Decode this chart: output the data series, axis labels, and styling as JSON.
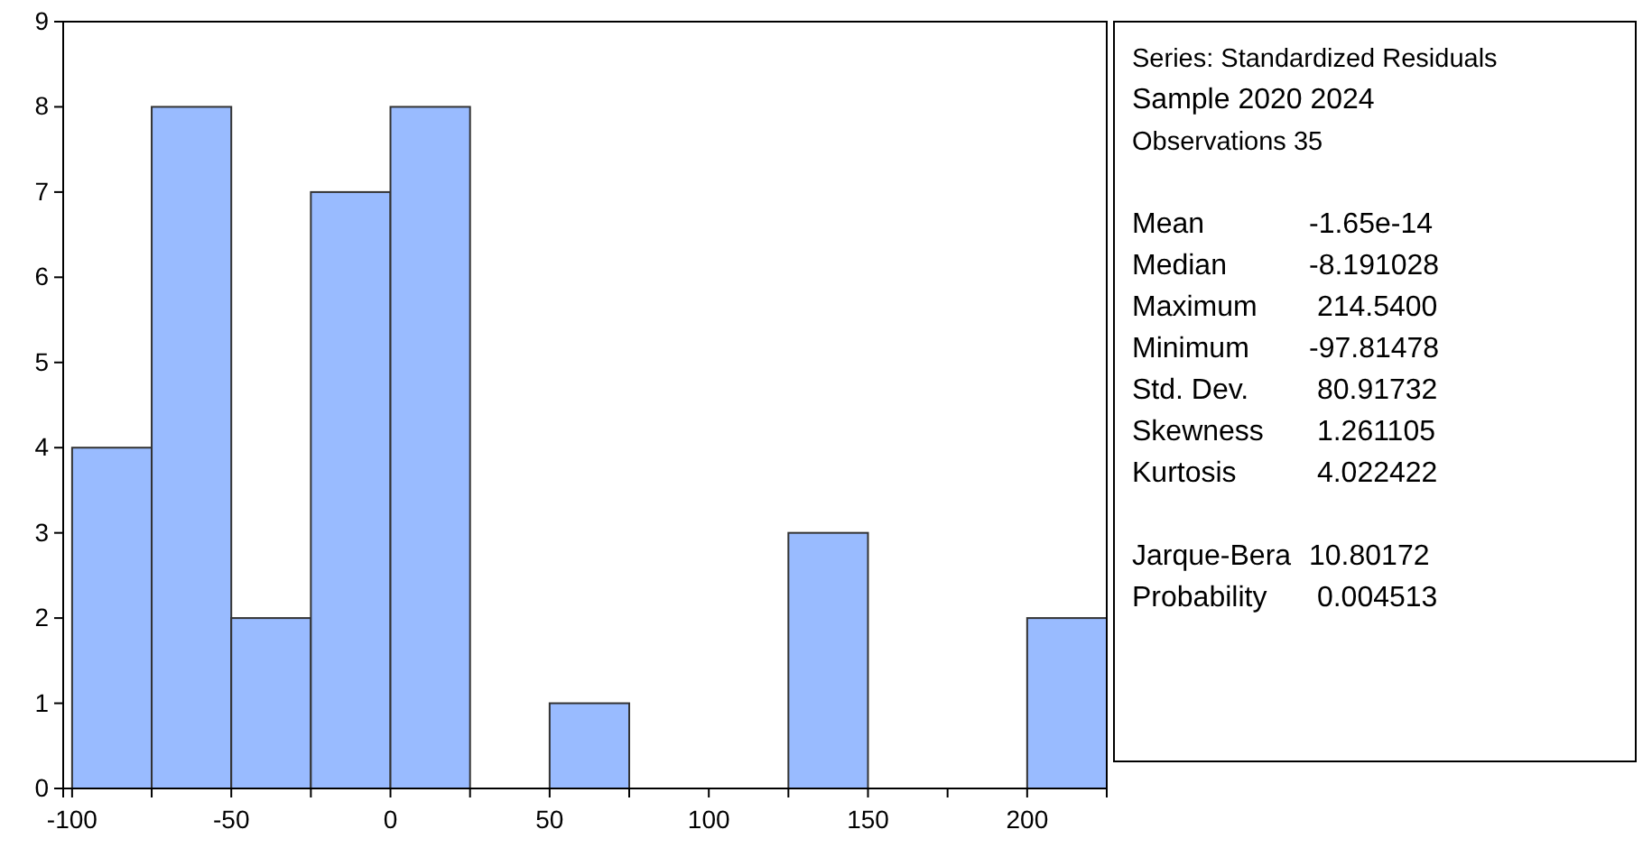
{
  "chart_data": [
    {
      "type": "histogram",
      "bins": [
        -100,
        -75,
        -50,
        -25,
        0,
        25,
        50,
        75,
        100,
        125,
        150,
        175,
        200,
        225
      ],
      "values": [
        4,
        8,
        2,
        7,
        8,
        0,
        1,
        0,
        0,
        3,
        0,
        0,
        2
      ],
      "color": "#99bbff",
      "xlim": [
        -102.8,
        225
      ],
      "ylim": [
        0,
        9
      ],
      "xticks": [
        -100,
        {
          "value": -75,
          "label": null
        },
        -50,
        {
          "value": -25,
          "label": null
        },
        0,
        {
          "value": 25,
          "label": null
        },
        50,
        {
          "value": 75,
          "label": null
        },
        100,
        {
          "value": 125,
          "label": null
        },
        150,
        {
          "value": 175,
          "label": null
        },
        200,
        {
          "value": 225,
          "label": null
        }
      ],
      "yticks": [
        0,
        1,
        2,
        3,
        4,
        5,
        6,
        7,
        8,
        9
      ],
      "grid": false
    },
    {
      "type": "other",
      "annotations": [
        "Series: Standardized Residuals",
        "Sample 2020 2024",
        "Observations 35"
      ],
      "categories": [
        "Mean",
        "Median",
        "Maximum",
        "Minimum",
        "Std. Dev.",
        "Skewness",
        "Kurtosis",
        "Jarque-Bera",
        "Probability"
      ],
      "value_labels": [
        "-1.65e-14",
        "-8.191028",
        " 214.5400",
        "-97.81478",
        " 80.91732",
        " 1.261105",
        " 4.022422",
        "10.80172",
        " 0.004513"
      ]
    }
  ]
}
